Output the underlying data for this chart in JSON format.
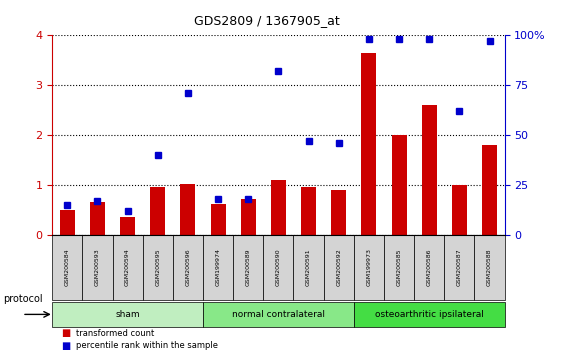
{
  "title": "GDS2809 / 1367905_at",
  "samples": [
    "GSM200584",
    "GSM200593",
    "GSM200594",
    "GSM200595",
    "GSM200596",
    "GSM199974",
    "GSM200589",
    "GSM200590",
    "GSM200591",
    "GSM200592",
    "GSM199973",
    "GSM200585",
    "GSM200586",
    "GSM200587",
    "GSM200588"
  ],
  "red_values": [
    0.5,
    0.65,
    0.35,
    0.95,
    1.02,
    0.62,
    0.72,
    1.1,
    0.95,
    0.9,
    3.65,
    2.0,
    2.6,
    1.0,
    1.8
  ],
  "blue_pct": [
    15,
    17,
    12,
    40,
    71,
    18,
    18,
    82,
    47,
    46,
    98,
    98,
    98,
    62,
    97
  ],
  "groups": [
    {
      "label": "sham",
      "start": 0,
      "end": 5,
      "color": "#c0eec0"
    },
    {
      "label": "normal contralateral",
      "start": 5,
      "end": 10,
      "color": "#88e888"
    },
    {
      "label": "osteoarthritic ipsilateral",
      "start": 10,
      "end": 15,
      "color": "#44dd44"
    }
  ],
  "protocol_label": "protocol",
  "ylim_left": [
    0,
    4
  ],
  "ylim_right": [
    0,
    100
  ],
  "yticks_left": [
    0,
    1,
    2,
    3,
    4
  ],
  "yticks_right": [
    0,
    25,
    50,
    75,
    100
  ],
  "ytick_labels_right": [
    "0",
    "25",
    "50",
    "75",
    "100%"
  ],
  "red_color": "#cc0000",
  "blue_color": "#0000cc",
  "background_color": "#ffffff",
  "sample_bg_color": "#d4d4d4"
}
